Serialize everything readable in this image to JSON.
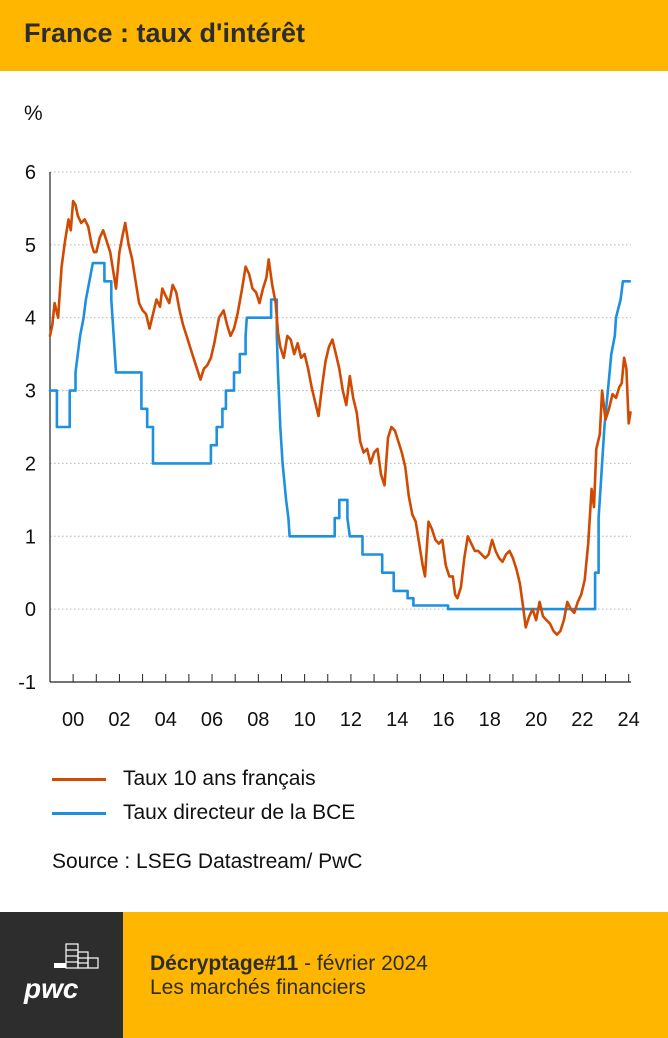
{
  "header": {
    "title": "France : taux d'intérêt"
  },
  "colors": {
    "accent": "#FFB600",
    "dark": "#2d2d2d",
    "series_10y": "#D04A02",
    "series_ecb": "#1E90E0"
  },
  "chart_data": {
    "type": "line",
    "unit_label": "%",
    "ylim": [
      -1,
      6
    ],
    "yticks": [
      "-1",
      "0",
      "1",
      "2",
      "3",
      "4",
      "5",
      "6"
    ],
    "xlim": [
      1999.0,
      2024.1
    ],
    "xticks": [
      {
        "v": 2000,
        "label": "00"
      },
      {
        "v": 2002,
        "label": "02"
      },
      {
        "v": 2004,
        "label": "04"
      },
      {
        "v": 2006,
        "label": "06"
      },
      {
        "v": 2008,
        "label": "08"
      },
      {
        "v": 2010,
        "label": "10"
      },
      {
        "v": 2012,
        "label": "12"
      },
      {
        "v": 2014,
        "label": "14"
      },
      {
        "v": 2016,
        "label": "16"
      },
      {
        "v": 2018,
        "label": "18"
      },
      {
        "v": 2020,
        "label": "20"
      },
      {
        "v": 2022,
        "label": "22"
      },
      {
        "v": 2024,
        "label": "24"
      }
    ],
    "grid": "horizontal-dotted",
    "series": [
      {
        "name": "Taux 10 ans français",
        "color": "#D04A02",
        "points": [
          [
            1999.0,
            3.75
          ],
          [
            1999.1,
            3.9
          ],
          [
            1999.2,
            4.2
          ],
          [
            1999.35,
            4.0
          ],
          [
            1999.5,
            4.7
          ],
          [
            1999.65,
            5.05
          ],
          [
            1999.8,
            5.35
          ],
          [
            1999.9,
            5.2
          ],
          [
            2000.0,
            5.6
          ],
          [
            2000.1,
            5.55
          ],
          [
            2000.2,
            5.4
          ],
          [
            2000.35,
            5.3
          ],
          [
            2000.5,
            5.35
          ],
          [
            2000.65,
            5.25
          ],
          [
            2000.8,
            5.0
          ],
          [
            2000.9,
            4.9
          ],
          [
            2001.0,
            4.9
          ],
          [
            2001.15,
            5.1
          ],
          [
            2001.3,
            5.2
          ],
          [
            2001.45,
            5.05
          ],
          [
            2001.6,
            4.9
          ],
          [
            2001.75,
            4.6
          ],
          [
            2001.85,
            4.4
          ],
          [
            2002.0,
            4.9
          ],
          [
            2002.15,
            5.15
          ],
          [
            2002.25,
            5.3
          ],
          [
            2002.4,
            5.0
          ],
          [
            2002.55,
            4.8
          ],
          [
            2002.7,
            4.5
          ],
          [
            2002.85,
            4.2
          ],
          [
            2003.0,
            4.1
          ],
          [
            2003.15,
            4.05
          ],
          [
            2003.3,
            3.85
          ],
          [
            2003.45,
            4.05
          ],
          [
            2003.6,
            4.25
          ],
          [
            2003.75,
            4.15
          ],
          [
            2003.85,
            4.4
          ],
          [
            2004.0,
            4.3
          ],
          [
            2004.15,
            4.2
          ],
          [
            2004.3,
            4.45
          ],
          [
            2004.45,
            4.35
          ],
          [
            2004.6,
            4.1
          ],
          [
            2004.75,
            3.9
          ],
          [
            2004.9,
            3.75
          ],
          [
            2005.05,
            3.6
          ],
          [
            2005.2,
            3.45
          ],
          [
            2005.35,
            3.3
          ],
          [
            2005.5,
            3.15
          ],
          [
            2005.65,
            3.3
          ],
          [
            2005.8,
            3.35
          ],
          [
            2005.95,
            3.45
          ],
          [
            2006.1,
            3.65
          ],
          [
            2006.3,
            4.0
          ],
          [
            2006.5,
            4.1
          ],
          [
            2006.65,
            3.9
          ],
          [
            2006.8,
            3.75
          ],
          [
            2006.95,
            3.85
          ],
          [
            2007.1,
            4.05
          ],
          [
            2007.3,
            4.4
          ],
          [
            2007.45,
            4.7
          ],
          [
            2007.6,
            4.6
          ],
          [
            2007.75,
            4.4
          ],
          [
            2007.9,
            4.35
          ],
          [
            2008.05,
            4.2
          ],
          [
            2008.2,
            4.4
          ],
          [
            2008.35,
            4.55
          ],
          [
            2008.45,
            4.8
          ],
          [
            2008.6,
            4.45
          ],
          [
            2008.75,
            4.2
          ],
          [
            2008.85,
            3.8
          ],
          [
            2008.95,
            3.6
          ],
          [
            2009.1,
            3.45
          ],
          [
            2009.25,
            3.75
          ],
          [
            2009.4,
            3.7
          ],
          [
            2009.55,
            3.5
          ],
          [
            2009.7,
            3.65
          ],
          [
            2009.85,
            3.45
          ],
          [
            2010.0,
            3.5
          ],
          [
            2010.15,
            3.3
          ],
          [
            2010.3,
            3.05
          ],
          [
            2010.45,
            2.85
          ],
          [
            2010.6,
            2.65
          ],
          [
            2010.75,
            3.05
          ],
          [
            2010.9,
            3.4
          ],
          [
            2011.05,
            3.6
          ],
          [
            2011.2,
            3.7
          ],
          [
            2011.35,
            3.5
          ],
          [
            2011.5,
            3.3
          ],
          [
            2011.65,
            3.0
          ],
          [
            2011.8,
            2.8
          ],
          [
            2011.95,
            3.2
          ],
          [
            2012.1,
            2.9
          ],
          [
            2012.25,
            2.7
          ],
          [
            2012.4,
            2.3
          ],
          [
            2012.55,
            2.15
          ],
          [
            2012.7,
            2.2
          ],
          [
            2012.85,
            2.0
          ],
          [
            2013.0,
            2.15
          ],
          [
            2013.15,
            2.2
          ],
          [
            2013.3,
            1.85
          ],
          [
            2013.45,
            1.7
          ],
          [
            2013.6,
            2.35
          ],
          [
            2013.75,
            2.5
          ],
          [
            2013.9,
            2.45
          ],
          [
            2014.05,
            2.3
          ],
          [
            2014.2,
            2.15
          ],
          [
            2014.35,
            1.95
          ],
          [
            2014.5,
            1.55
          ],
          [
            2014.65,
            1.3
          ],
          [
            2014.8,
            1.2
          ],
          [
            2014.95,
            0.9
          ],
          [
            2015.1,
            0.6
          ],
          [
            2015.2,
            0.45
          ],
          [
            2015.35,
            1.2
          ],
          [
            2015.5,
            1.1
          ],
          [
            2015.65,
            0.95
          ],
          [
            2015.8,
            0.9
          ],
          [
            2015.95,
            0.95
          ],
          [
            2016.1,
            0.6
          ],
          [
            2016.25,
            0.45
          ],
          [
            2016.4,
            0.45
          ],
          [
            2016.5,
            0.2
          ],
          [
            2016.6,
            0.15
          ],
          [
            2016.75,
            0.3
          ],
          [
            2016.9,
            0.7
          ],
          [
            2017.05,
            1.0
          ],
          [
            2017.2,
            0.9
          ],
          [
            2017.35,
            0.8
          ],
          [
            2017.5,
            0.8
          ],
          [
            2017.65,
            0.75
          ],
          [
            2017.8,
            0.7
          ],
          [
            2017.95,
            0.75
          ],
          [
            2018.1,
            0.95
          ],
          [
            2018.25,
            0.8
          ],
          [
            2018.4,
            0.7
          ],
          [
            2018.55,
            0.65
          ],
          [
            2018.7,
            0.75
          ],
          [
            2018.85,
            0.8
          ],
          [
            2019.0,
            0.7
          ],
          [
            2019.15,
            0.55
          ],
          [
            2019.3,
            0.35
          ],
          [
            2019.45,
            0.0
          ],
          [
            2019.55,
            -0.25
          ],
          [
            2019.7,
            -0.1
          ],
          [
            2019.85,
            0.0
          ],
          [
            2020.0,
            -0.15
          ],
          [
            2020.15,
            0.1
          ],
          [
            2020.3,
            -0.1
          ],
          [
            2020.45,
            -0.15
          ],
          [
            2020.6,
            -0.2
          ],
          [
            2020.75,
            -0.3
          ],
          [
            2020.9,
            -0.35
          ],
          [
            2021.05,
            -0.3
          ],
          [
            2021.2,
            -0.15
          ],
          [
            2021.35,
            0.1
          ],
          [
            2021.5,
            0.0
          ],
          [
            2021.65,
            -0.05
          ],
          [
            2021.8,
            0.1
          ],
          [
            2021.95,
            0.2
          ],
          [
            2022.1,
            0.4
          ],
          [
            2022.25,
            0.9
          ],
          [
            2022.4,
            1.65
          ],
          [
            2022.5,
            1.4
          ],
          [
            2022.6,
            2.2
          ],
          [
            2022.75,
            2.4
          ],
          [
            2022.85,
            3.0
          ],
          [
            2023.0,
            2.6
          ],
          [
            2023.15,
            2.75
          ],
          [
            2023.3,
            2.95
          ],
          [
            2023.45,
            2.9
          ],
          [
            2023.6,
            3.05
          ],
          [
            2023.7,
            3.1
          ],
          [
            2023.8,
            3.45
          ],
          [
            2023.9,
            3.3
          ],
          [
            2024.0,
            2.55
          ],
          [
            2024.08,
            2.7
          ]
        ]
      },
      {
        "name": "Taux directeur de la BCE",
        "color": "#1E90E0",
        "points": [
          [
            1999.0,
            3.0
          ],
          [
            1999.3,
            3.0
          ],
          [
            1999.3,
            2.5
          ],
          [
            1999.85,
            2.5
          ],
          [
            1999.85,
            3.0
          ],
          [
            2000.1,
            3.0
          ],
          [
            2000.1,
            3.25
          ],
          [
            2000.2,
            3.5
          ],
          [
            2000.3,
            3.75
          ],
          [
            2000.45,
            4.0
          ],
          [
            2000.55,
            4.25
          ],
          [
            2000.7,
            4.5
          ],
          [
            2000.85,
            4.75
          ],
          [
            2001.35,
            4.75
          ],
          [
            2001.35,
            4.5
          ],
          [
            2001.65,
            4.5
          ],
          [
            2001.65,
            4.25
          ],
          [
            2001.7,
            4.0
          ],
          [
            2001.75,
            3.75
          ],
          [
            2001.85,
            3.25
          ],
          [
            2002.95,
            3.25
          ],
          [
            2002.95,
            2.75
          ],
          [
            2003.2,
            2.75
          ],
          [
            2003.2,
            2.5
          ],
          [
            2003.45,
            2.5
          ],
          [
            2003.45,
            2.0
          ],
          [
            2005.95,
            2.0
          ],
          [
            2005.95,
            2.25
          ],
          [
            2006.2,
            2.25
          ],
          [
            2006.2,
            2.5
          ],
          [
            2006.45,
            2.5
          ],
          [
            2006.45,
            2.75
          ],
          [
            2006.6,
            2.75
          ],
          [
            2006.6,
            3.0
          ],
          [
            2006.95,
            3.0
          ],
          [
            2006.95,
            3.25
          ],
          [
            2007.2,
            3.25
          ],
          [
            2007.2,
            3.5
          ],
          [
            2007.45,
            3.5
          ],
          [
            2007.45,
            3.75
          ],
          [
            2007.5,
            4.0
          ],
          [
            2008.55,
            4.0
          ],
          [
            2008.55,
            4.25
          ],
          [
            2008.8,
            4.25
          ],
          [
            2008.8,
            3.75
          ],
          [
            2008.85,
            3.25
          ],
          [
            2008.95,
            2.5
          ],
          [
            2009.05,
            2.0
          ],
          [
            2009.2,
            1.5
          ],
          [
            2009.3,
            1.25
          ],
          [
            2009.35,
            1.0
          ],
          [
            2011.3,
            1.0
          ],
          [
            2011.3,
            1.25
          ],
          [
            2011.5,
            1.25
          ],
          [
            2011.5,
            1.5
          ],
          [
            2011.85,
            1.5
          ],
          [
            2011.85,
            1.25
          ],
          [
            2011.95,
            1.0
          ],
          [
            2012.5,
            1.0
          ],
          [
            2012.5,
            0.75
          ],
          [
            2013.35,
            0.75
          ],
          [
            2013.35,
            0.5
          ],
          [
            2013.85,
            0.5
          ],
          [
            2013.85,
            0.25
          ],
          [
            2014.45,
            0.25
          ],
          [
            2014.45,
            0.15
          ],
          [
            2014.7,
            0.15
          ],
          [
            2014.7,
            0.05
          ],
          [
            2016.2,
            0.05
          ],
          [
            2016.2,
            0.0
          ],
          [
            2022.55,
            0.0
          ],
          [
            2022.55,
            0.5
          ],
          [
            2022.7,
            0.5
          ],
          [
            2022.7,
            1.25
          ],
          [
            2022.85,
            2.0
          ],
          [
            2022.95,
            2.5
          ],
          [
            2023.1,
            3.0
          ],
          [
            2023.25,
            3.5
          ],
          [
            2023.4,
            3.75
          ],
          [
            2023.45,
            4.0
          ],
          [
            2023.65,
            4.25
          ],
          [
            2023.75,
            4.5
          ],
          [
            2024.05,
            4.5
          ]
        ]
      }
    ]
  },
  "legend": [
    {
      "label": "Taux 10 ans français",
      "color": "#D04A02"
    },
    {
      "label": "Taux directeur de la BCE",
      "color": "#1E90E0"
    }
  ],
  "source": "Source : LSEG Datastream/ PwC",
  "footer": {
    "brand": "pwc",
    "issue": "Décryptage#11",
    "date": " - février 2024",
    "subtitle": "Les marchés financiers"
  }
}
